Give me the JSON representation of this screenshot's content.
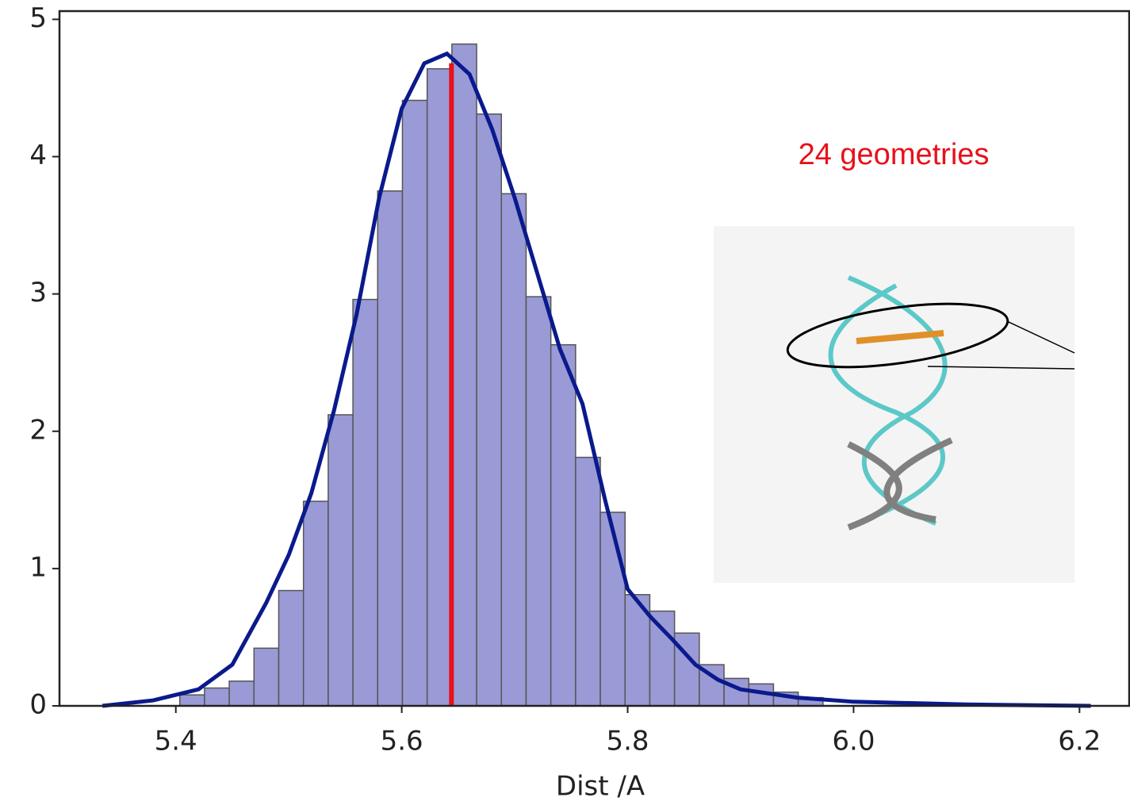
{
  "chart_data": {
    "type": "histogram",
    "xlabel": "Dist /A",
    "bins": [
      5.4035,
      5.4254,
      5.4473,
      5.4692,
      5.4911,
      5.513,
      5.5349,
      5.5568,
      5.5787,
      5.6006,
      5.6225,
      5.6444,
      5.6663,
      5.6882,
      5.7101,
      5.732,
      5.7539,
      5.7758,
      5.7977,
      5.8196,
      5.8415,
      5.8634,
      5.8853,
      5.9072,
      5.9291,
      5.951,
      5.9729
    ],
    "values": [
      0.08,
      0.13,
      0.18,
      0.42,
      0.84,
      1.49,
      2.12,
      2.96,
      3.75,
      4.41,
      4.64,
      4.82,
      4.31,
      3.73,
      2.98,
      2.63,
      1.81,
      1.41,
      0.81,
      0.69,
      0.53,
      0.3,
      0.2,
      0.16,
      0.1,
      0.06
    ],
    "color": "#9a9ad6",
    "kde": {
      "color": "#0a1a8c",
      "x": [
        5.335,
        5.38,
        5.42,
        5.45,
        5.48,
        5.5,
        5.52,
        5.54,
        5.56,
        5.58,
        5.6,
        5.62,
        5.64,
        5.66,
        5.68,
        5.7,
        5.72,
        5.74,
        5.76,
        5.78,
        5.8,
        5.82,
        5.84,
        5.86,
        5.88,
        5.9,
        5.95,
        6.0,
        6.1,
        6.21
      ],
      "values": [
        0.0,
        0.04,
        0.12,
        0.3,
        0.75,
        1.1,
        1.55,
        2.15,
        2.85,
        3.7,
        4.35,
        4.68,
        4.75,
        4.6,
        4.2,
        3.7,
        3.15,
        2.6,
        2.2,
        1.5,
        0.85,
        0.65,
        0.48,
        0.3,
        0.19,
        0.12,
        0.06,
        0.03,
        0.01,
        0.0
      ]
    },
    "vline": {
      "x": 5.644,
      "y": 4.68,
      "color": "#e8101a"
    },
    "annotation": {
      "text": "24 geometries",
      "color": "#e8101a"
    },
    "xlim": [
      5.297,
      6.244
    ],
    "ylim": [
      0,
      5.06
    ],
    "xticks": [
      5.4,
      5.6,
      5.8,
      {
        "value": 6,
        "label": "6.0"
      },
      6.2
    ],
    "yticks": [
      0,
      1,
      2,
      3,
      4,
      5
    ]
  }
}
